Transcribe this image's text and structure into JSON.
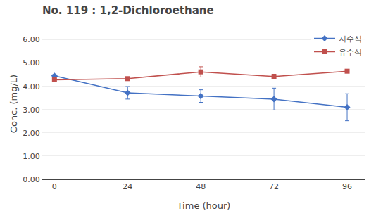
{
  "chart_data": {
    "type": "line",
    "title": "No. 119 : 1,2-Dichloroethane",
    "xlabel": "Time (hour)",
    "ylabel": "Conc. (mg/L)",
    "x": [
      0,
      24,
      48,
      72,
      96
    ],
    "series": [
      {
        "name": "지수식",
        "color": "#4472C4",
        "marker": "diamond",
        "values": [
          4.45,
          3.72,
          3.58,
          3.45,
          3.1
        ],
        "yerr": [
          0.05,
          0.27,
          0.27,
          0.47,
          0.58
        ]
      },
      {
        "name": "유수식",
        "color": "#C0504D",
        "marker": "square",
        "values": [
          4.28,
          4.33,
          4.62,
          4.42,
          4.65
        ],
        "yerr": [
          0.05,
          0.05,
          0.22,
          0.1,
          0.05
        ]
      }
    ],
    "xlim": [
      -4,
      102
    ],
    "xticks": [
      0,
      24,
      48,
      72,
      96
    ],
    "ylim": [
      0,
      6.5
    ],
    "yticks": [
      {
        "value": 0.0,
        "label": "0.00"
      },
      {
        "value": 1.0,
        "label": "1.00"
      },
      {
        "value": 2.0,
        "label": "2.00"
      },
      {
        "value": 3.0,
        "label": "3.00"
      },
      {
        "value": 4.0,
        "label": "4.00"
      },
      {
        "value": 5.0,
        "label": "5.00"
      },
      {
        "value": 6.0,
        "label": "6.00"
      }
    ],
    "grid": "y",
    "legend": "upper right"
  }
}
